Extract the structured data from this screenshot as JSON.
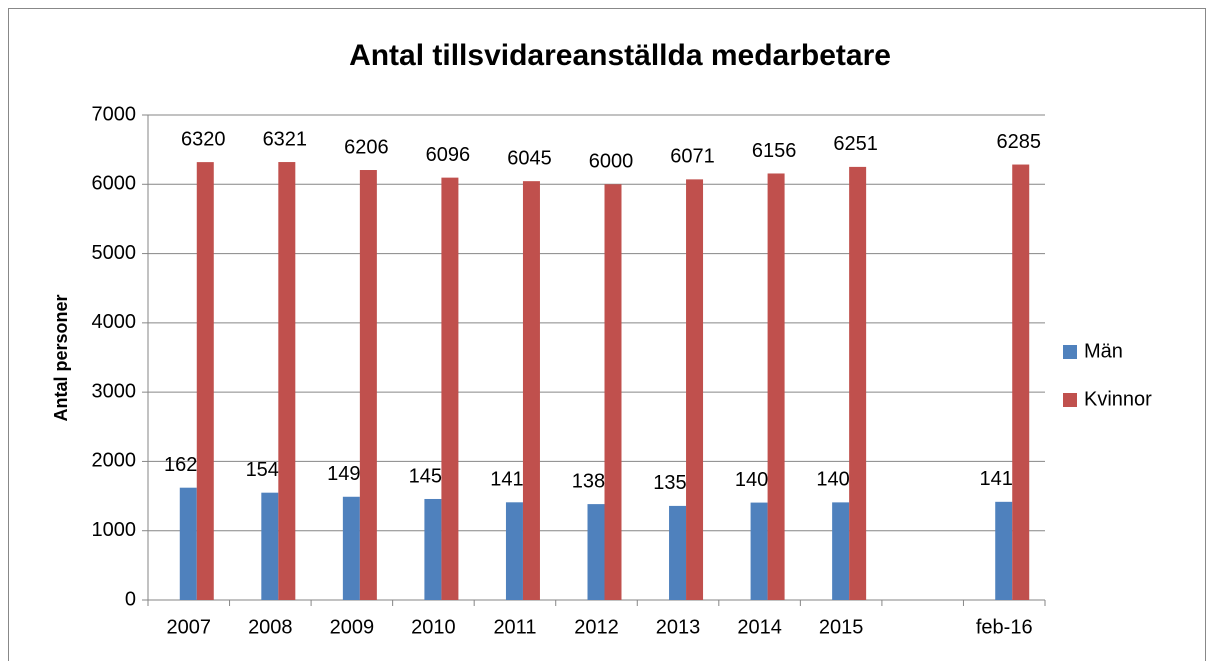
{
  "chart_data": {
    "type": "bar",
    "title": "Antal tillsvidareanställda medarbetare",
    "y_label": "Antal personer",
    "categories": [
      "2007",
      "2008",
      "2009",
      "2010",
      "2011",
      "2012",
      "2013",
      "2014",
      "2015",
      null,
      "feb-16"
    ],
    "series": [
      {
        "name": "Män",
        "color": "#4f81bd",
        "values": [
          1621,
          1549,
          1490,
          1458,
          1410,
          1384,
          1358,
          1406,
          1409,
          null,
          1417
        ]
      },
      {
        "name": "Kvinnor",
        "color": "#c0504d",
        "values": [
          6320,
          6321,
          6206,
          6096,
          6045,
          6000,
          6071,
          6156,
          6251,
          null,
          6285
        ]
      }
    ],
    "ylim": [
      0,
      7000
    ],
    "yticks": [
      0,
      1000,
      2000,
      3000,
      4000,
      5000,
      6000,
      7000
    ],
    "grid": true,
    "legend": "right"
  }
}
